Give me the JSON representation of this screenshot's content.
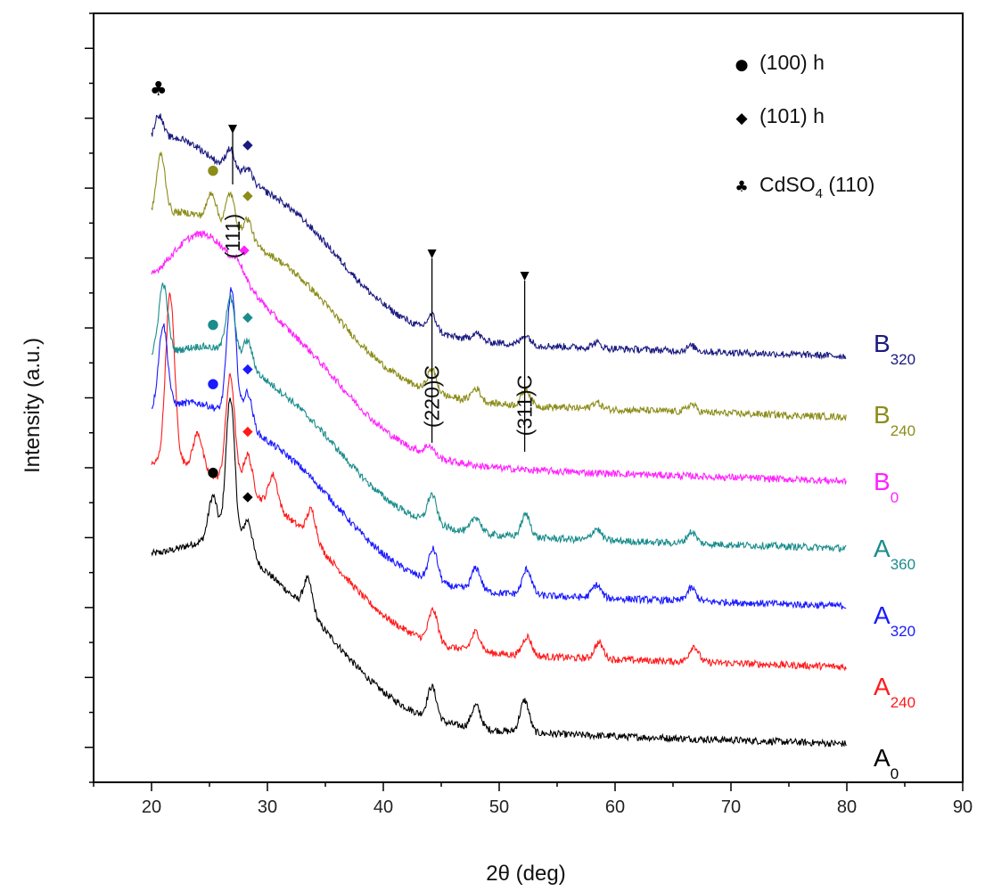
{
  "chart_data": {
    "type": "line",
    "title": "",
    "xlabel": "2θ (deg)",
    "ylabel": "Intensity (a.u.)",
    "xlim": [
      15,
      90
    ],
    "ylim": [
      0,
      12
    ],
    "x_ticks": [
      "20",
      "30",
      "40",
      "50",
      "60",
      "70",
      "80",
      "90"
    ],
    "y_tick_labels": "none",
    "legend": {
      "position": "top-right",
      "entries": [
        {
          "marker": "●",
          "label": "(100) h"
        },
        {
          "marker": "◆",
          "label": "(101) h"
        },
        {
          "marker": "♣",
          "label": "CdSO",
          "subscript": "4",
          "suffix": " (110)"
        }
      ]
    },
    "annotations": [
      {
        "text": "(111)",
        "x": 27.0,
        "arrow": true
      },
      {
        "text": "(220)C",
        "x": 44.2,
        "arrow": true
      },
      {
        "text": "(311)C",
        "x": 52.2,
        "arrow": true
      }
    ],
    "series": [
      {
        "name": "A0",
        "label": "A",
        "sub": "0",
        "color": "#000000",
        "x_range": [
          20,
          80
        ],
        "offset": 0.6,
        "hump_center": 26,
        "hump_amp": 0.35,
        "peaks": [
          {
            "x": 25.3,
            "h": 0.7
          },
          {
            "x": 26.8,
            "h": 2.3
          },
          {
            "x": 28.3,
            "h": 0.55
          },
          {
            "x": 33.5,
            "h": 0.5
          },
          {
            "x": 44.2,
            "h": 0.5
          },
          {
            "x": 48.0,
            "h": 0.35
          },
          {
            "x": 52.2,
            "h": 0.5
          }
        ]
      },
      {
        "name": "A240",
        "label": "A",
        "sub": "240",
        "color": "#ff1a1a",
        "x_range": [
          20,
          80
        ],
        "offset": 1.8,
        "hump_center": 22,
        "hump_amp": 0.3,
        "peaks": [
          {
            "x": 21.6,
            "h": 2.6
          },
          {
            "x": 24.0,
            "h": 0.55
          },
          {
            "x": 26.8,
            "h": 1.7
          },
          {
            "x": 28.3,
            "h": 0.6
          },
          {
            "x": 30.5,
            "h": 0.5
          },
          {
            "x": 33.8,
            "h": 0.45
          },
          {
            "x": 44.3,
            "h": 0.5
          },
          {
            "x": 48.0,
            "h": 0.3
          },
          {
            "x": 52.4,
            "h": 0.3
          },
          {
            "x": 58.6,
            "h": 0.25
          },
          {
            "x": 66.8,
            "h": 0.25
          }
        ]
      },
      {
        "name": "A320",
        "label": "A",
        "sub": "320",
        "color": "#1a1aff",
        "x_range": [
          20,
          80
        ],
        "offset": 2.75,
        "hump_center": 24,
        "hump_amp": 0.3,
        "peaks": [
          {
            "x": 21.0,
            "h": 1.3
          },
          {
            "x": 26.9,
            "h": 2.0
          },
          {
            "x": 28.3,
            "h": 0.55
          },
          {
            "x": 44.3,
            "h": 0.5
          },
          {
            "x": 48.0,
            "h": 0.35
          },
          {
            "x": 52.4,
            "h": 0.4
          },
          {
            "x": 58.4,
            "h": 0.2
          },
          {
            "x": 66.6,
            "h": 0.2
          }
        ]
      },
      {
        "name": "A360",
        "label": "A",
        "sub": "360",
        "color": "#1a8c8c",
        "x_range": [
          20,
          80
        ],
        "offset": 3.65,
        "hump_center": 25,
        "hump_amp": 0.3,
        "peaks": [
          {
            "x": 21.0,
            "h": 1.1
          },
          {
            "x": 26.8,
            "h": 0.9
          },
          {
            "x": 28.3,
            "h": 0.4
          },
          {
            "x": 44.2,
            "h": 0.45
          },
          {
            "x": 48.0,
            "h": 0.25
          },
          {
            "x": 52.3,
            "h": 0.35
          },
          {
            "x": 58.4,
            "h": 0.18
          },
          {
            "x": 66.6,
            "h": 0.18
          }
        ]
      },
      {
        "name": "B0",
        "label": "B",
        "sub": "0",
        "color": "#ff22ff",
        "x_range": [
          20,
          80
        ],
        "offset": 4.7,
        "hump_center": 24.5,
        "hump_amp": 1.0,
        "peaks": [
          {
            "x": 27.5,
            "h": 0.15
          },
          {
            "x": 44.0,
            "h": 0.15
          }
        ]
      },
      {
        "name": "B240",
        "label": "B",
        "sub": "240",
        "color": "#8c8c1a",
        "x_range": [
          20,
          80
        ],
        "offset": 5.7,
        "hump_center": 23,
        "hump_amp": 0.3,
        "peaks": [
          {
            "x": 20.8,
            "h": 0.95
          },
          {
            "x": 25.2,
            "h": 0.45
          },
          {
            "x": 26.8,
            "h": 0.6
          },
          {
            "x": 28.3,
            "h": 0.35
          },
          {
            "x": 44.2,
            "h": 0.35
          },
          {
            "x": 48.0,
            "h": 0.2
          },
          {
            "x": 52.3,
            "h": 0.25
          },
          {
            "x": 58.4,
            "h": 0.1
          },
          {
            "x": 66.6,
            "h": 0.12
          }
        ]
      },
      {
        "name": "B320",
        "label": "B",
        "sub": "320",
        "color": "#1a1a80",
        "x_range": [
          20,
          80
        ],
        "offset": 6.65,
        "hump_center": 22,
        "hump_amp": 0.5,
        "peaks": [
          {
            "x": 20.6,
            "h": 0.4
          },
          {
            "x": 26.8,
            "h": 0.35
          },
          {
            "x": 28.3,
            "h": 0.2
          },
          {
            "x": 44.2,
            "h": 0.25
          },
          {
            "x": 48.0,
            "h": 0.12
          },
          {
            "x": 52.3,
            "h": 0.15
          },
          {
            "x": 58.4,
            "h": 0.08
          },
          {
            "x": 66.6,
            "h": 0.08
          }
        ]
      }
    ],
    "markers": [
      {
        "series": "A0",
        "symbol": "●",
        "x": 25.3
      },
      {
        "series": "A0",
        "symbol": "◆",
        "x": 28.3
      },
      {
        "series": "A240",
        "symbol": "◆",
        "x": 28.3
      },
      {
        "series": "A320",
        "symbol": "●",
        "x": 25.3
      },
      {
        "series": "A320",
        "symbol": "◆",
        "x": 28.3
      },
      {
        "series": "A360",
        "symbol": "●",
        "x": 25.3
      },
      {
        "series": "A360",
        "symbol": "◆",
        "x": 28.3
      },
      {
        "series": "B0",
        "symbol": "◆",
        "x": 28.0
      },
      {
        "series": "B240",
        "symbol": "●",
        "x": 25.3
      },
      {
        "series": "B240",
        "symbol": "◆",
        "x": 28.3
      },
      {
        "series": "B320",
        "symbol": "◆",
        "x": 28.3
      },
      {
        "series": "B320",
        "symbol": "♣",
        "x": 20.6
      }
    ]
  }
}
